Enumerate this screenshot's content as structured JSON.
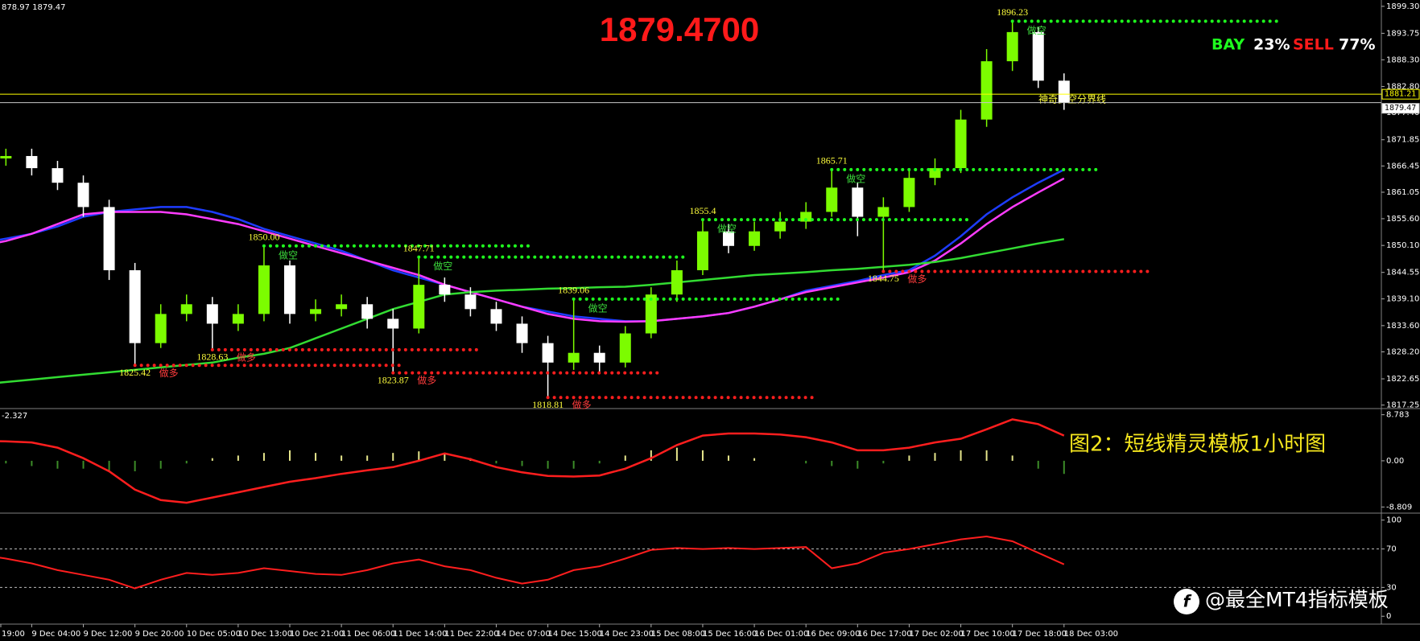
{
  "chart_data": [
    {
      "type": "candlestick",
      "header": "878.97 1879.47",
      "title": "1879.4700",
      "categories": [
        "19:00",
        null,
        "9 Dec 04:00",
        null,
        "9 Dec 12:00",
        null,
        "9 Dec 20:00",
        null,
        "10 Dec 05:00",
        null,
        "10 Dec 13:00",
        null,
        "10 Dec 21:00",
        null,
        "11 Dec 06:00",
        null,
        "11 Dec 14:00",
        null,
        "11 Dec 22:00",
        null,
        "14 Dec 07:00",
        null,
        "14 Dec 15:00",
        null,
        "14 Dec 23:00",
        null,
        "15 Dec 08:00",
        null,
        "15 Dec 16:00",
        null,
        "16 Dec 01:00",
        null,
        "16 Dec 09:00",
        null,
        "16 Dec 17:00",
        null,
        "17 Dec 02:00",
        null,
        "17 Dec 10:00",
        null,
        "17 Dec 18:00",
        null,
        "18 Dec 03:00"
      ],
      "open": [
        1869,
        1868,
        1868.5,
        1866,
        1863,
        1858,
        1845,
        1830,
        1836,
        1838,
        1834,
        1836,
        1846,
        1836,
        1837,
        1838,
        1835,
        1833,
        1842,
        1840,
        1837,
        1834,
        1830,
        1826,
        1828,
        1826,
        1832,
        1840,
        1845,
        1853,
        1850,
        1853,
        1855,
        1857,
        1862,
        1856,
        1858,
        1864,
        1866,
        1876,
        1888,
        1894,
        1884
      ],
      "high": [
        1870.5,
        1870,
        1870,
        1867.5,
        1864.5,
        1859.5,
        1846.5,
        1838,
        1840,
        1839.5,
        1838,
        1850,
        1847,
        1839,
        1840,
        1839.5,
        1837,
        1847.71,
        1843.5,
        1841.5,
        1838.5,
        1835.5,
        1831.5,
        1839.06,
        1829.5,
        1833.5,
        1841.5,
        1847,
        1855.4,
        1854.5,
        1855,
        1857,
        1859,
        1865.71,
        1863,
        1860,
        1866,
        1868,
        1878,
        1890.5,
        1896.23,
        1895,
        1885.5
      ],
      "low": [
        1866.5,
        1866.5,
        1864.5,
        1861.5,
        1856,
        1843,
        1825.42,
        1829,
        1834.5,
        1828.63,
        1832.5,
        1834.5,
        1834,
        1834.5,
        1835.5,
        1833,
        1823.87,
        1832,
        1838.5,
        1835.5,
        1832.5,
        1828,
        1818.81,
        1824.5,
        1824,
        1825,
        1831,
        1838.5,
        1844,
        1848.5,
        1849,
        1851.5,
        1853.5,
        1856,
        1852,
        1844.75,
        1857,
        1862.5,
        1865,
        1874.5,
        1886,
        1882.5,
        1878
      ],
      "close": [
        1868,
        1868.5,
        1866,
        1863,
        1858,
        1845,
        1830,
        1836,
        1838,
        1834,
        1836,
        1846,
        1836,
        1837,
        1838,
        1835,
        1833,
        1842,
        1840,
        1837,
        1834,
        1830,
        1826,
        1828,
        1826,
        1832,
        1840,
        1845,
        1853,
        1850,
        1853,
        1855,
        1857,
        1862,
        1856,
        1858,
        1864,
        1866,
        1876,
        1888,
        1894,
        1884,
        1879.47
      ],
      "bull_color": "#7cfc00",
      "bear_color": "#ffffff",
      "series": [
        {
          "color": "#1e3cff",
          "values": [
            1850.5,
            1851.5,
            1852.5,
            1854,
            1856,
            1857,
            1857.5,
            1858,
            1858,
            1857,
            1855.5,
            1853.5,
            1852,
            1850.5,
            1849,
            1847,
            1845,
            1843.5,
            1842,
            1840.5,
            1839,
            1837.5,
            1836.5,
            1835.5,
            1835,
            1834.5,
            1834.5,
            1835,
            1835.5,
            1836.2,
            1837.5,
            1839,
            1840.8,
            1841.8,
            1842.8,
            1844,
            1845,
            1848,
            1852,
            1856.5,
            1860,
            1863,
            1865.7
          ]
        },
        {
          "color": "#ff3cff",
          "values": [
            1850,
            1851,
            1852.5,
            1854.5,
            1856.5,
            1857,
            1857,
            1857,
            1856.5,
            1855.5,
            1854.5,
            1853,
            1851.5,
            1850,
            1848.5,
            1847,
            1845.5,
            1844,
            1842,
            1840.5,
            1839,
            1837.5,
            1836,
            1835,
            1834.5,
            1834.4,
            1834.5,
            1835,
            1835.5,
            1836.2,
            1837.5,
            1839,
            1840.5,
            1841.5,
            1842.5,
            1843.5,
            1844.6,
            1847,
            1850.5,
            1854.5,
            1858,
            1861,
            1863.9
          ]
        },
        {
          "color": "#32dc32",
          "values": [
            1821.5,
            1822,
            1822.5,
            1823,
            1823.5,
            1824,
            1824.5,
            1825,
            1825.5,
            1826,
            1827,
            1827.8,
            1829,
            1831,
            1833,
            1835,
            1837,
            1838.5,
            1840,
            1840.5,
            1840.8,
            1841,
            1841.2,
            1841.3,
            1841.5,
            1841.6,
            1842,
            1842.5,
            1843,
            1843.5,
            1844,
            1844.3,
            1844.6,
            1845,
            1845.3,
            1845.7,
            1846.1,
            1846.7,
            1847.5,
            1848.5,
            1849.5,
            1850.5,
            1851.4
          ]
        }
      ],
      "ylim": [
        1816.7,
        1900.6
      ],
      "yticks": [
        {
          "value": 1899.3,
          "label": "1899.30"
        },
        1893.75,
        {
          "value": 1888.3,
          "label": "1888.30"
        },
        {
          "value": 1882.8,
          "label": "1882.80"
        },
        {
          "value": 1877.4,
          "label": "1877.40"
        },
        1871.85,
        1866.45,
        1861.05,
        {
          "value": 1855.6,
          "label": "1855.60"
        },
        {
          "value": 1850.1,
          "label": "1850.10"
        },
        1844.55,
        {
          "value": 1839.1,
          "label": "1839.10"
        },
        {
          "value": 1833.6,
          "label": "1833.60"
        },
        {
          "value": 1828.2,
          "label": "1828.20"
        },
        1822.65,
        1817.25
      ],
      "hlines": [
        {
          "value": 1881.21,
          "color": "#ffff00"
        },
        {
          "value": 1879.47,
          "color": "#c8c8c8"
        }
      ],
      "divider_label": "神奇多空分界线",
      "swing_labels": [
        1896.23,
        1865.71,
        1855.4,
        {
          "value": 1850,
          "label": "1850.00"
        },
        1847.71,
        1839.06,
        1844.75,
        1828.63,
        1825.42,
        1823.87,
        1818.81
      ],
      "short_signal": "做空",
      "long_signal": "做多",
      "sentiment": {
        "buy_label": "BAY",
        "buy": {
          "value": 23,
          "label": "23%"
        },
        "sell_label": "SELL",
        "sell": {
          "value": 77,
          "label": "77%"
        }
      },
      "caption": "图2：短线精灵模板1小时图",
      "watermark": "@最全MT4指标模板"
    },
    {
      "type": "macd",
      "current_value": -2.327,
      "ylim": [
        -9.67,
        9.65
      ],
      "yticks": [
        8.783,
        {
          "value": 0,
          "label": "0.00"
        },
        -8.809
      ],
      "histogram": [
        -1,
        -0.5,
        -1,
        -1.5,
        -1.5,
        -2,
        -2,
        -1.5,
        -0.5,
        0.5,
        1,
        1.5,
        2,
        1.5,
        1,
        1,
        1.5,
        1.8,
        1.5,
        0.5,
        -0.5,
        -1,
        -1.5,
        -1.5,
        -0.5,
        1,
        2,
        2.5,
        2,
        1,
        0.5,
        0,
        -0.5,
        -1,
        -1.5,
        -0.5,
        1,
        1.5,
        2,
        2,
        1,
        -1.5,
        -2.5
      ],
      "positive_color": "#e6e68c",
      "negative_color": "#3c8c28",
      "series": [
        {
          "color": "#ff1e1e",
          "values": [
            3.8,
            3.7,
            3.5,
            2.5,
            0.5,
            -2,
            -5.5,
            -7.5,
            -8,
            -7,
            -6,
            -5,
            -4,
            -3.3,
            -2.5,
            -1.8,
            -1.2,
            0,
            1.4,
            0.3,
            -1.2,
            -2.2,
            -2.9,
            -3,
            -2.8,
            -1.5,
            0.5,
            3,
            4.8,
            5.2,
            5.2,
            5,
            4.5,
            3.5,
            2,
            2,
            2.5,
            3.5,
            4.2,
            6,
            7.9,
            7,
            4.8
          ]
        }
      ]
    },
    {
      "type": "line",
      "ylim": [
        -6.5,
        105.6
      ],
      "yticks": [
        100,
        70,
        30,
        0
      ],
      "level_lines": [
        70,
        30
      ],
      "series": [
        {
          "color": "#ff1e1e",
          "values": [
            64,
            60,
            55,
            48,
            43,
            38,
            29,
            38,
            45,
            43,
            45,
            50,
            47,
            44,
            43,
            48,
            55,
            59,
            52,
            48,
            40,
            34,
            38,
            48,
            52,
            60,
            69,
            71,
            70,
            71,
            70,
            71,
            72,
            50,
            55,
            66,
            70,
            75,
            80,
            83,
            78,
            66,
            54
          ]
        }
      ]
    }
  ]
}
